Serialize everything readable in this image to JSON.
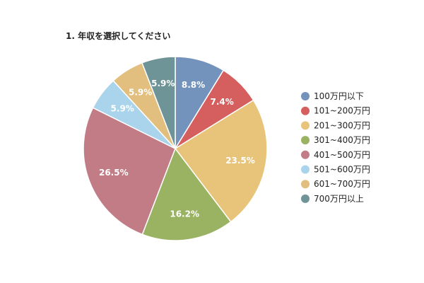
{
  "chart_data": {
    "type": "pie",
    "title": "1. 年収を選択してください",
    "categories": [
      "100万円以下",
      "101~200万円",
      "201~300万円",
      "301~400万円",
      "401~500万円",
      "501~600万円",
      "601~700万円",
      "700万円以上"
    ],
    "values": [
      8.8,
      7.4,
      23.5,
      16.2,
      26.5,
      5.9,
      5.9,
      5.9
    ],
    "labels": [
      "8.8%",
      "7.4%",
      "23.5%",
      "16.2%",
      "26.5%",
      "5.9%",
      "5.9%",
      "5.9%"
    ],
    "colors": [
      "#7393bd",
      "#d55e5e",
      "#e8c47a",
      "#9ab363",
      "#c27c86",
      "#a9d4eb",
      "#e2bf7e",
      "#6e9498"
    ],
    "legend_position": "right"
  }
}
